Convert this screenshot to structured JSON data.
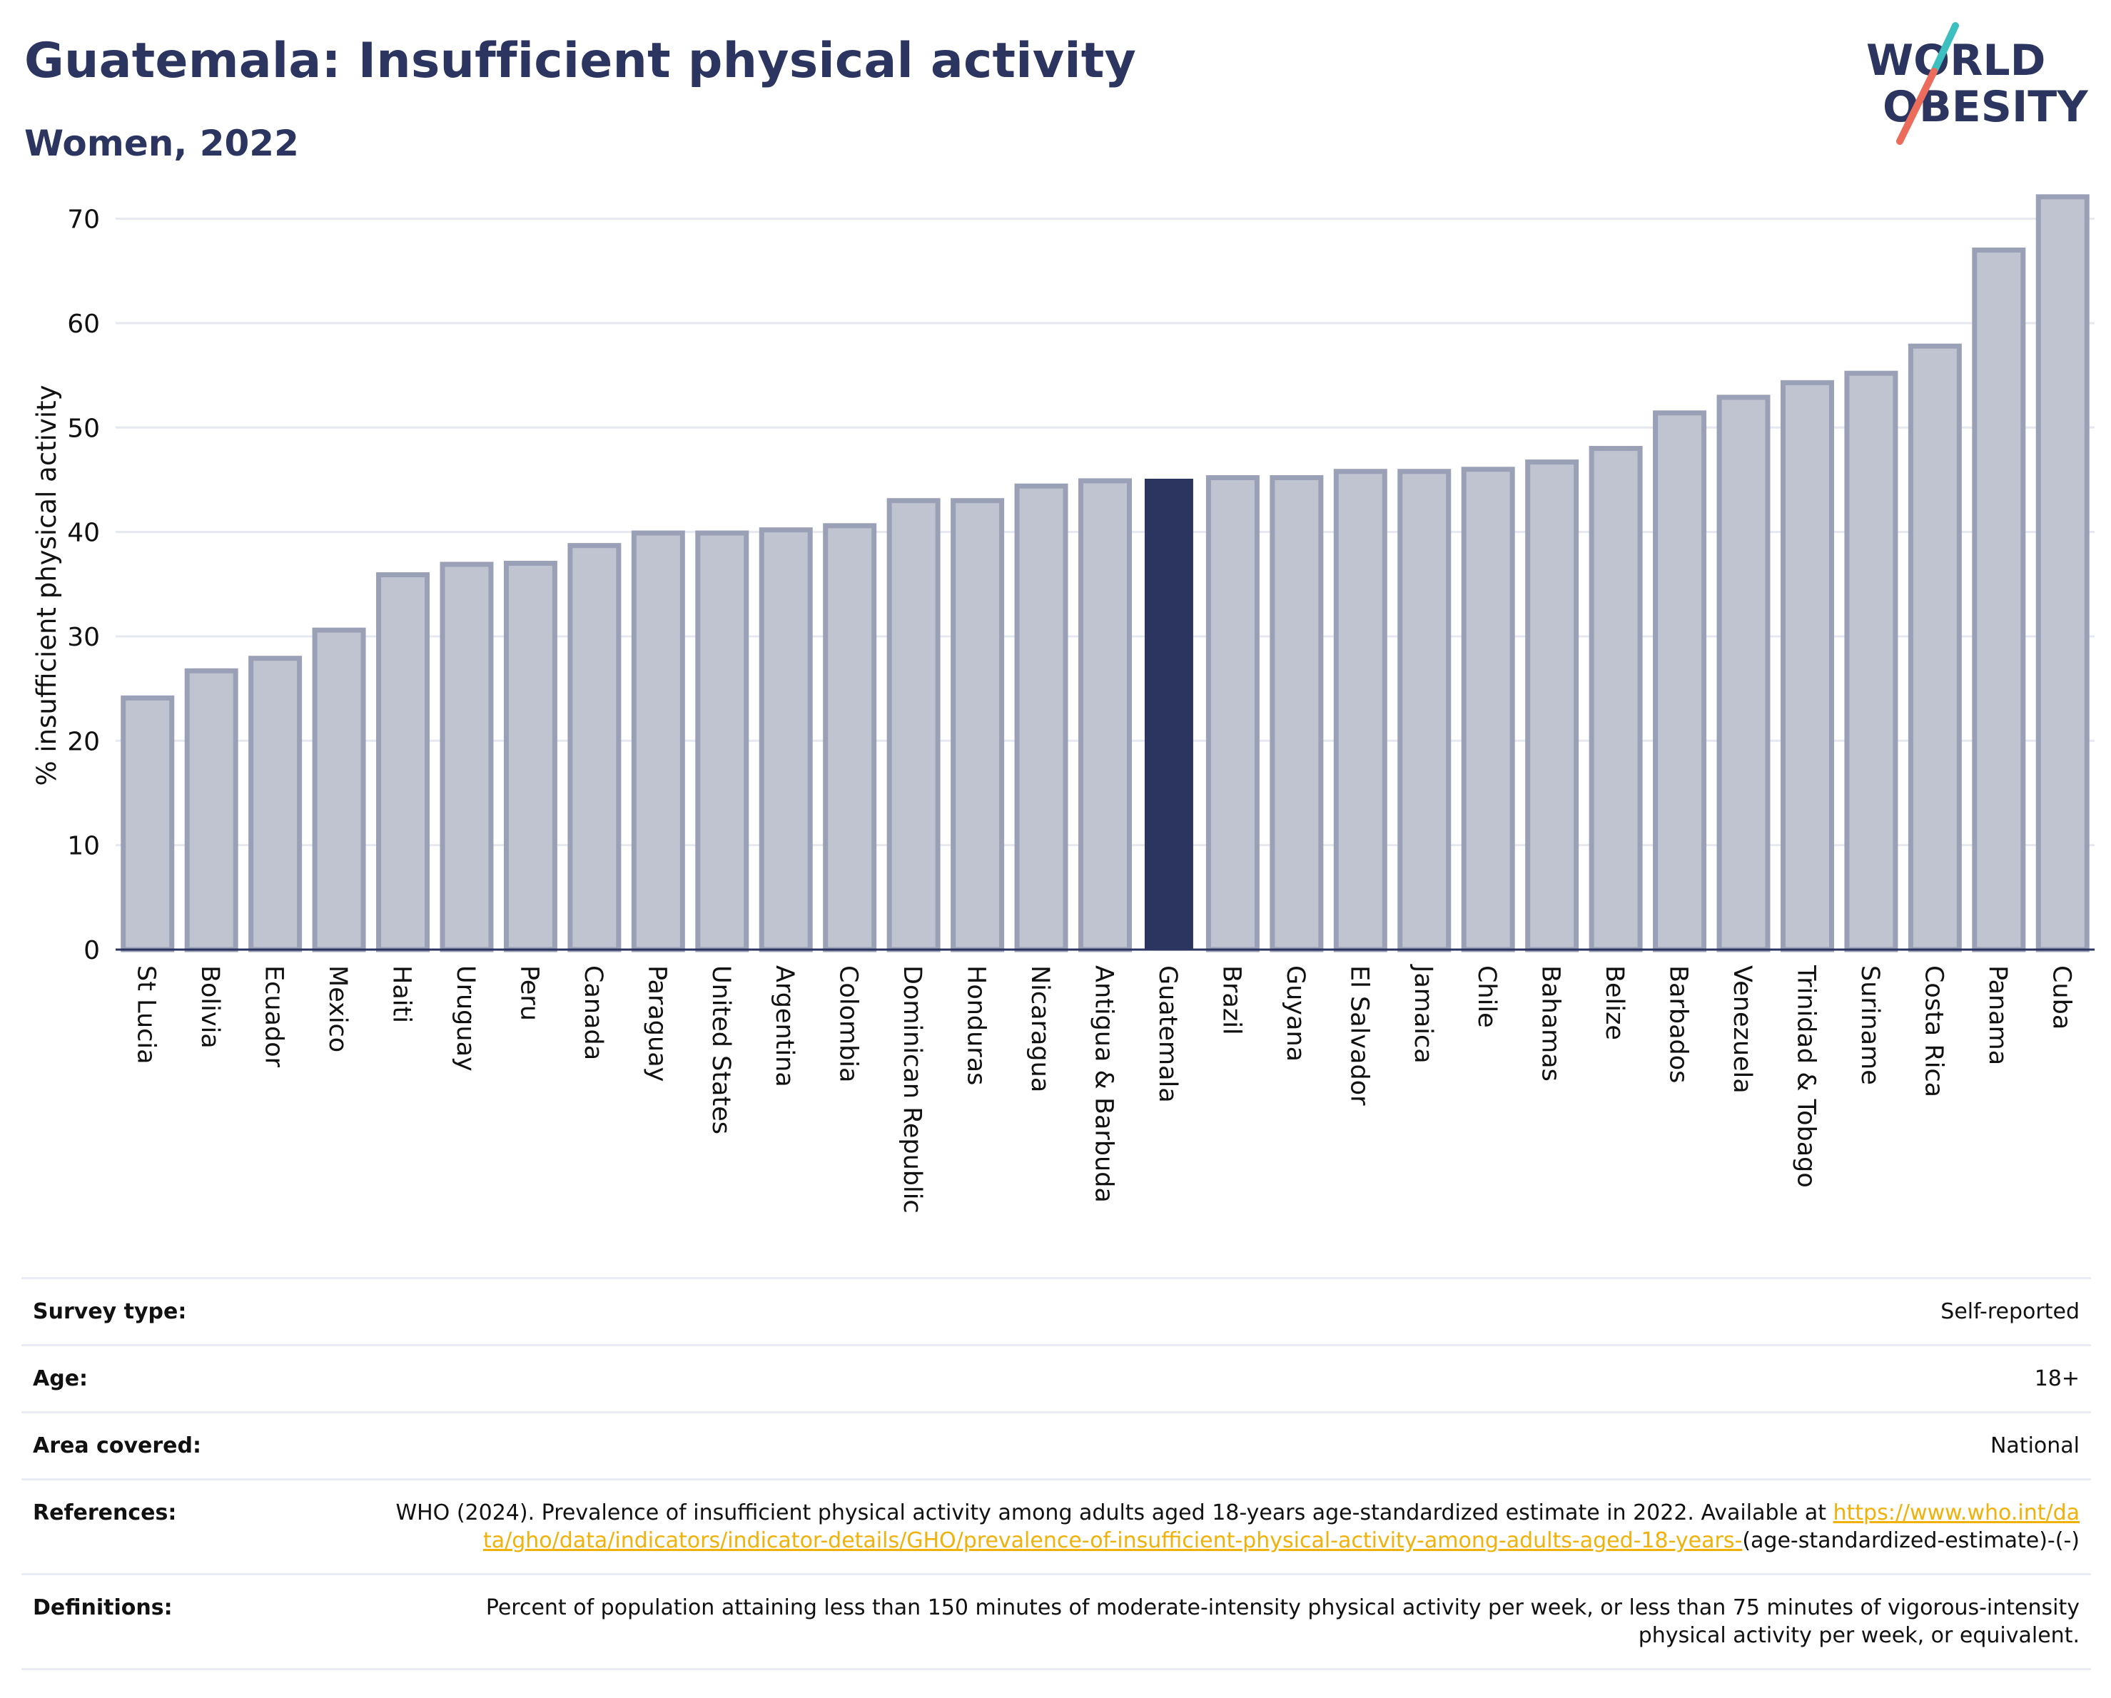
{
  "header": {
    "title": "Guatemala: Insufficient physical activity",
    "subtitle": "Women, 2022"
  },
  "logo": {
    "line1": "WORLD",
    "line2": "OBESITY",
    "accent_colors": [
      "#3dbfbf",
      "#ec6c5c"
    ],
    "text_color": "#2b3560"
  },
  "chart_data": {
    "type": "bar",
    "ylabel": "% insufficient physical activity",
    "xlabel": "",
    "ylim": [
      0,
      72.5
    ],
    "yticks": [
      0,
      10,
      20,
      30,
      40,
      50,
      60,
      70
    ],
    "grid": true,
    "highlight": "Guatemala",
    "colors": {
      "bar": "#c0c3d0",
      "bar_outline": "#9aa0b6",
      "highlight": "#2b3560"
    },
    "categories": [
      "St Lucia",
      "Bolivia",
      "Ecuador",
      "Mexico",
      "Haiti",
      "Uruguay",
      "Peru",
      "Canada",
      "Paraguay",
      "United States",
      "Argentina",
      "Colombia",
      "Dominican Republic",
      "Honduras",
      "Nicaragua",
      "Antigua & Barbuda",
      "Guatemala",
      "Brazil",
      "Guyana",
      "El Salvador",
      "Jamaica",
      "Chile",
      "Bahamas",
      "Belize",
      "Barbados",
      "Venezuela",
      "Trinidad & Tobago",
      "Suriname",
      "Costa Rica",
      "Panama",
      "Cuba"
    ],
    "values": [
      24.1,
      26.7,
      27.9,
      30.6,
      35.9,
      36.9,
      37.0,
      38.7,
      39.9,
      39.9,
      40.2,
      40.6,
      43.0,
      43.0,
      44.4,
      44.9,
      45.1,
      45.2,
      45.2,
      45.8,
      45.8,
      46.0,
      46.7,
      48.0,
      51.4,
      52.9,
      54.3,
      55.2,
      57.8,
      67.0,
      72.1
    ]
  },
  "details": {
    "survey_type_label": "Survey type:",
    "survey_type": "Self-reported",
    "age_label": "Age:",
    "age": "18+",
    "area_label": "Area covered:",
    "area": "National",
    "references_label": "References:",
    "references_text": "WHO (2024). Prevalence of insufficient physical activity among adults aged 18-years age-standardized estimate in 2022. Available at ",
    "references_link": "https://www.who.int/data/gho/data/indicators/indicator-details/GHO/prevalence-of-insufficient-physical-activity-among-adults-aged-18-years-",
    "references_suffix": "(age-standardized-estimate)-(-)",
    "definitions_label": "Definitions:",
    "definitions": "Percent of population attaining less than 150 minutes of moderate-intensity physical activity per week, or less than 75 minutes of vigorous-intensity physical activity per week, or equivalent."
  }
}
